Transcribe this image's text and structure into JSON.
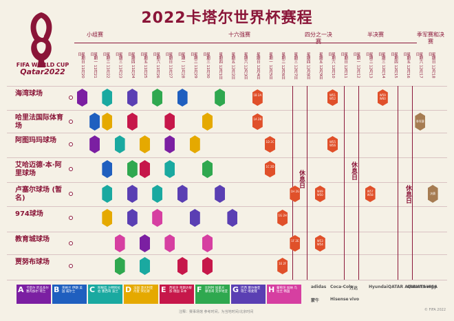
{
  "title": "2022卡塔尔世界杯赛程",
  "brand": {
    "line1": "FIFA WORLD CUP",
    "line2": "Qatar2022"
  },
  "stages": {
    "group": "小组赛",
    "r16": "十六强赛",
    "qf": "四分之一决赛",
    "sf": "半决赛",
    "final": "季军赛和决赛"
  },
  "dates": [
    "星期日 11月20日",
    "星期一 11月21日",
    "星期二 11月22日",
    "星期三 11月23日",
    "星期四 11月24日",
    "星期五 11月25日",
    "星期六 11月26日",
    "星期日 11月27日",
    "星期一 11月28日",
    "星期二 11月29日",
    "星期三 11月30日",
    "星期四 12月1日",
    "星期五 12月2日",
    "星期六 12月3日",
    "星期日 12月4日",
    "星期一 12月5日",
    "星期二 12月6日",
    "星期三 12月7日",
    "星期四 12月8日",
    "星期五 12月9日",
    "星期六 12月10日",
    "星期日 12月11日",
    "星期一 12月12日",
    "星期二 12月13日",
    "星期三 12月14日",
    "星期四 12月15日",
    "星期五 12月16日",
    "星期六 12月17日",
    "星期日 12月18日"
  ],
  "venues": [
    {
      "name": "海湾球场"
    },
    {
      "name": "哈里法国际体育场"
    },
    {
      "name": "阿图玛玛球场"
    },
    {
      "name": "艾哈迈德·本·阿里球场"
    },
    {
      "name": "卢塞尔球场 (暂名)"
    },
    {
      "name": "974球场"
    },
    {
      "name": "教育城球场"
    },
    {
      "name": "贾努布球场"
    }
  ],
  "rest_label": "休息日",
  "knockout_labels": {
    "r16": [
      "1B 2A",
      "1A 2B",
      "1D 2C",
      "1C 2D",
      "1H 2G",
      "1G 2H",
      "1F 2E",
      "1E 2F"
    ],
    "qf": [
      "W51 W52",
      "W55 W56",
      "W49 W50",
      "W53 W54"
    ],
    "sf": [
      "W59 W60",
      "W57 W58"
    ],
    "final_labels": [
      "季军赛",
      "决赛"
    ]
  },
  "legend": [
    {
      "letter": "A",
      "teams": "卡塔尔 厄瓜多尔 塞内加尔 荷兰",
      "color": "#7b1fa2"
    },
    {
      "letter": "B",
      "teams": "英格兰 伊朗 美国 威尔士",
      "color": "#1f5fbf"
    },
    {
      "letter": "C",
      "teams": "阿根廷 沙特阿拉伯 墨西哥 波兰",
      "color": "#1aa9a0"
    },
    {
      "letter": "D",
      "teams": "法国 澳大利亚 丹麦 突尼斯",
      "color": "#e5a900"
    },
    {
      "letter": "E",
      "teams": "西班牙 哥斯达黎加 德国 日本",
      "color": "#c6174a"
    },
    {
      "letter": "F",
      "teams": "比利时 加拿大 摩洛哥 克罗地亚",
      "color": "#2fa84f"
    },
    {
      "letter": "G",
      "teams": "巴西 塞尔维亚 瑞士 喀麦隆",
      "color": "#5a3fb3"
    },
    {
      "letter": "H",
      "teams": "葡萄牙 加纳 乌拉圭 韩国",
      "color": "#d63fa1"
    }
  ],
  "sponsors": [
    "adidas",
    "Coca-Cola",
    "万达",
    "Hyundai",
    "QATAR AIRWAYS",
    "QatarEnergy",
    "VISA",
    "蒙牛",
    "Hisense",
    "vivo"
  ],
  "footer_note": "注释：赛事场馆 参考时间，为当地时间/北京时间",
  "copyright": "© FIFA 2022"
}
